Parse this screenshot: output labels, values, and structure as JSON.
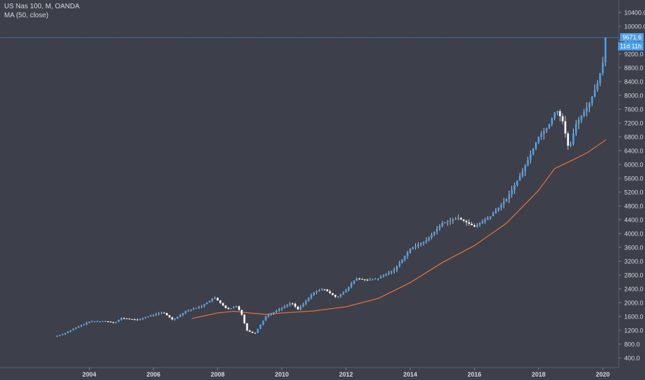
{
  "header": {
    "symbol_line": "US Nas 100, M, OANDA",
    "indicator_line": "MA (50, close)"
  },
  "price_axis": {
    "last_price_label": "9671.6",
    "countdown_label": "11d 11h"
  },
  "colors": {
    "background": "#3d3f4a",
    "candle_up": "#4a9fe8",
    "candle_down": "#ffffff",
    "wick": "#e6e6e6",
    "ma_line": "#e0703a",
    "last_price_line": "#4a9fe8",
    "axis_text": "#d5d7de"
  },
  "chart_data": {
    "type": "candlestick",
    "title": "US Nas 100, M, OANDA",
    "timeframe": "monthly",
    "xlabel": "",
    "ylabel": "",
    "x_range": [
      2001.6,
      2020.5
    ],
    "ylim": [
      200,
      10800
    ],
    "y_ticks": [
      400,
      800,
      1200,
      1600,
      2000,
      2400,
      2800,
      3200,
      3600,
      4000,
      4400,
      4800,
      5200,
      5600,
      6000,
      6400,
      6800,
      7200,
      7600,
      8000,
      8400,
      8800,
      9200,
      9600,
      10000,
      10400
    ],
    "y_tick_labels": [
      "400.0",
      "800.0",
      "1200.0",
      "1600.0",
      "2000.0",
      "2400.0",
      "2800.0",
      "3200.0",
      "3600.0",
      "4000.0",
      "4400.0",
      "4800.0",
      "5200.0",
      "5600.0",
      "6000.0",
      "6400.0",
      "6800.0",
      "7200.0",
      "7600.0",
      "8000.0",
      "8400.0",
      "8800.0",
      "9200.0",
      "9600.0",
      "10000.0",
      "10400.0"
    ],
    "x_ticks": [
      "2004",
      "2006",
      "2008",
      "2010",
      "2012",
      "2014",
      "2016",
      "2018",
      "2020"
    ],
    "last_price": 9671.6,
    "close_anchors": [
      [
        2003.0,
        1040
      ],
      [
        2003.2,
        1100
      ],
      [
        2003.6,
        1280
      ],
      [
        2004.0,
        1450
      ],
      [
        2004.5,
        1460
      ],
      [
        2004.8,
        1420
      ],
      [
        2005.0,
        1550
      ],
      [
        2005.5,
        1500
      ],
      [
        2006.0,
        1650
      ],
      [
        2006.3,
        1720
      ],
      [
        2006.6,
        1500
      ],
      [
        2007.0,
        1750
      ],
      [
        2007.5,
        1900
      ],
      [
        2007.9,
        2150
      ],
      [
        2008.3,
        1800
      ],
      [
        2008.6,
        1900
      ],
      [
        2008.75,
        1650
      ],
      [
        2008.9,
        1200
      ],
      [
        2009.15,
        1100
      ],
      [
        2009.5,
        1600
      ],
      [
        2010.0,
        1850
      ],
      [
        2010.3,
        2000
      ],
      [
        2010.5,
        1800
      ],
      [
        2011.0,
        2300
      ],
      [
        2011.3,
        2400
      ],
      [
        2011.7,
        2150
      ],
      [
        2012.0,
        2350
      ],
      [
        2012.3,
        2700
      ],
      [
        2012.7,
        2650
      ],
      [
        2013.0,
        2700
      ],
      [
        2013.5,
        2950
      ],
      [
        2014.0,
        3550
      ],
      [
        2014.5,
        3800
      ],
      [
        2015.0,
        4300
      ],
      [
        2015.5,
        4450
      ],
      [
        2016.0,
        4200
      ],
      [
        2016.5,
        4500
      ],
      [
        2017.0,
        5000
      ],
      [
        2017.5,
        5800
      ],
      [
        2018.0,
        6800
      ],
      [
        2018.3,
        7100
      ],
      [
        2018.55,
        7600
      ],
      [
        2018.75,
        7250
      ],
      [
        2018.95,
        6400
      ],
      [
        2019.15,
        7150
      ],
      [
        2019.4,
        7500
      ],
      [
        2019.6,
        7800
      ],
      [
        2019.85,
        8400
      ],
      [
        2020.0,
        8950
      ],
      [
        2020.1,
        9671.6
      ]
    ],
    "ma": {
      "name": "MA (50, close)",
      "period": 50,
      "points": [
        [
          2007.2,
          1540
        ],
        [
          2008.0,
          1700
        ],
        [
          2008.5,
          1750
        ],
        [
          2009.0,
          1700
        ],
        [
          2009.5,
          1660
        ],
        [
          2010.0,
          1700
        ],
        [
          2011.0,
          1760
        ],
        [
          2012.0,
          1880
        ],
        [
          2013.0,
          2120
        ],
        [
          2014.0,
          2580
        ],
        [
          2015.0,
          3160
        ],
        [
          2016.0,
          3650
        ],
        [
          2017.0,
          4300
        ],
        [
          2018.0,
          5250
        ],
        [
          2018.5,
          5880
        ],
        [
          2019.0,
          6100
        ],
        [
          2019.5,
          6330
        ],
        [
          2020.0,
          6650
        ],
        [
          2020.1,
          6720
        ]
      ]
    }
  }
}
